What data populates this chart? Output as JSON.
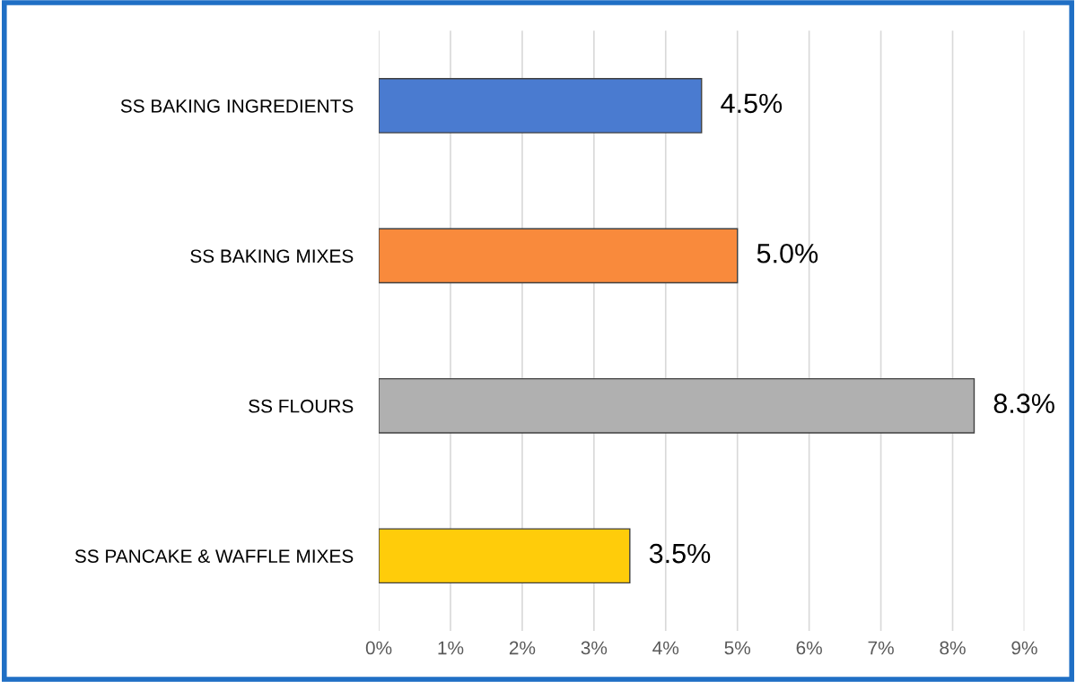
{
  "chart_data": {
    "type": "bar",
    "orientation": "horizontal",
    "categories": [
      "SS BAKING INGREDIENTS",
      "SS BAKING MIXES",
      "SS FLOURS",
      "SS PANCAKE & WAFFLE MIXES"
    ],
    "values": [
      4.5,
      5.0,
      8.3,
      3.5
    ],
    "colors": [
      "#4a7bd0",
      "#f98a3c",
      "#b0b0b0",
      "#ffcc0a"
    ],
    "value_labels": [
      "4.5%",
      "5.0%",
      "8.3%",
      "3.5%"
    ],
    "xlim": [
      0,
      9
    ],
    "xticks": [
      {
        "value": 0,
        "label": "0%"
      },
      {
        "value": 1,
        "label": "1%"
      },
      {
        "value": 2,
        "label": "2%"
      },
      {
        "value": 3,
        "label": "3%"
      },
      {
        "value": 4,
        "label": "4%"
      },
      {
        "value": 5,
        "label": "5%"
      },
      {
        "value": 6,
        "label": "6%"
      },
      {
        "value": 7,
        "label": "7%"
      },
      {
        "value": 8,
        "label": "8%"
      },
      {
        "value": 9,
        "label": "9%"
      }
    ],
    "grid": "x",
    "legend": false
  }
}
